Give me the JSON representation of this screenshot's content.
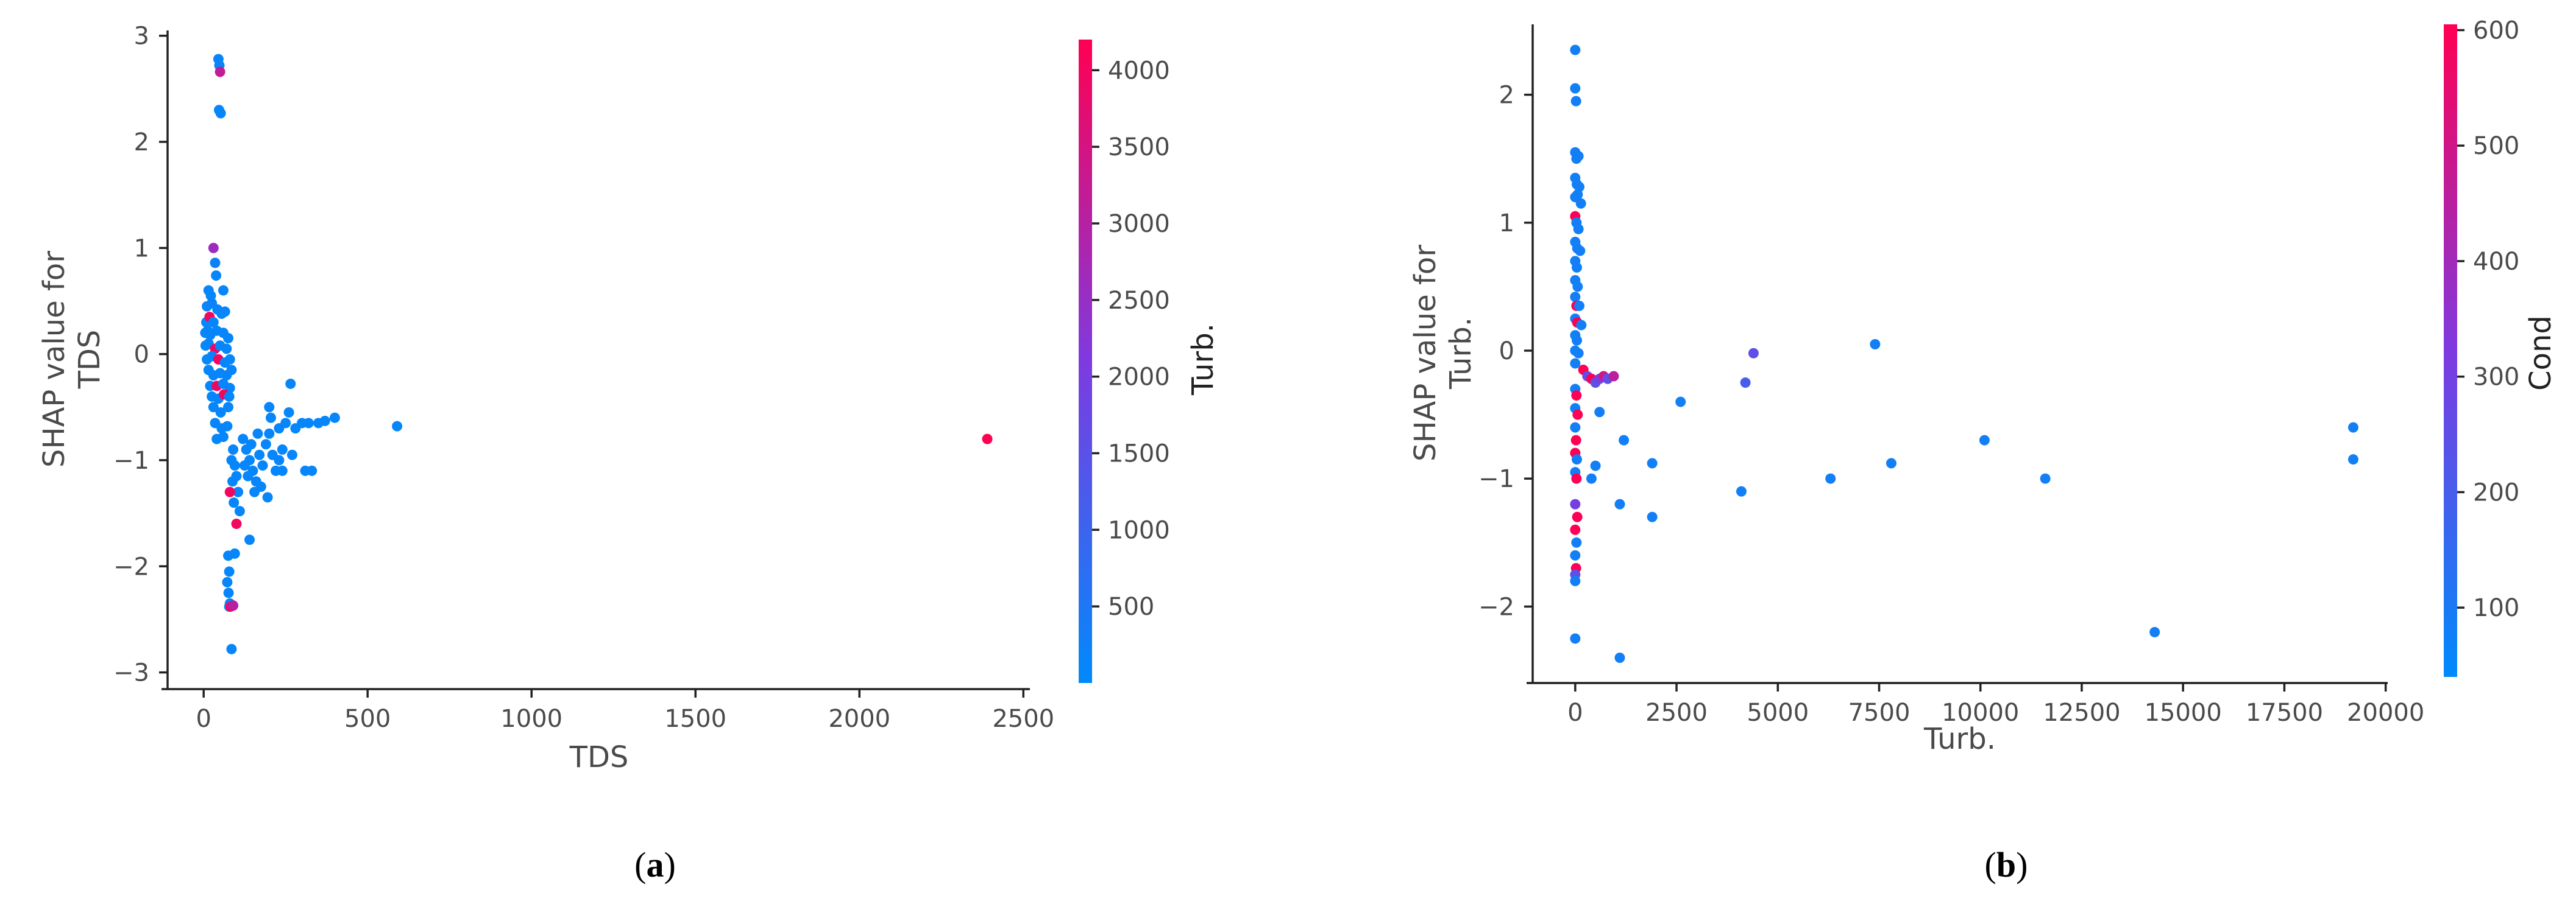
{
  "colors": {
    "low": "#1e88e5",
    "high": "#ff0052",
    "axis": "#222222",
    "text": "#4a4a4a"
  },
  "chart_data": [
    {
      "type": "scatter",
      "panel_label": "a",
      "xlabel": "TDS",
      "ylabel": "SHAP value for\nTDS",
      "colorbar_label": "Turb.",
      "xlim": [
        -110,
        2520
      ],
      "ylim": [
        -3.1,
        3.05
      ],
      "xticks": [
        0,
        500,
        1000,
        1500,
        2000,
        2500
      ],
      "yticks": [
        -3,
        -2,
        -1,
        0,
        1,
        2,
        3
      ],
      "colorbar_range": [
        0,
        4200
      ],
      "colorbar_ticks": [
        500,
        1000,
        1500,
        2000,
        2500,
        3000,
        3500,
        4000
      ],
      "points": [
        {
          "x": 45,
          "y": 2.78,
          "c": 100
        },
        {
          "x": 48,
          "y": 2.72,
          "c": 150
        },
        {
          "x": 50,
          "y": 2.66,
          "c": 3200
        },
        {
          "x": 47,
          "y": 2.3,
          "c": 100
        },
        {
          "x": 52,
          "y": 2.27,
          "c": 120
        },
        {
          "x": 30,
          "y": 1.0,
          "c": 2600
        },
        {
          "x": 35,
          "y": 0.86,
          "c": 200
        },
        {
          "x": 38,
          "y": 0.74,
          "c": 100
        },
        {
          "x": 15,
          "y": 0.6,
          "c": 100
        },
        {
          "x": 22,
          "y": 0.55,
          "c": 100
        },
        {
          "x": 60,
          "y": 0.6,
          "c": 100
        },
        {
          "x": 10,
          "y": 0.45,
          "c": 100
        },
        {
          "x": 25,
          "y": 0.48,
          "c": 150
        },
        {
          "x": 42,
          "y": 0.42,
          "c": 100
        },
        {
          "x": 8,
          "y": 0.3,
          "c": 100
        },
        {
          "x": 18,
          "y": 0.35,
          "c": 4000
        },
        {
          "x": 30,
          "y": 0.3,
          "c": 100
        },
        {
          "x": 55,
          "y": 0.38,
          "c": 100
        },
        {
          "x": 65,
          "y": 0.4,
          "c": 100
        },
        {
          "x": 5,
          "y": 0.2,
          "c": 100
        },
        {
          "x": 12,
          "y": 0.22,
          "c": 100
        },
        {
          "x": 20,
          "y": 0.18,
          "c": 100
        },
        {
          "x": 40,
          "y": 0.22,
          "c": 100
        },
        {
          "x": 60,
          "y": 0.2,
          "c": 100
        },
        {
          "x": 75,
          "y": 0.15,
          "c": 100
        },
        {
          "x": 6,
          "y": 0.08,
          "c": 100
        },
        {
          "x": 15,
          "y": 0.1,
          "c": 100
        },
        {
          "x": 35,
          "y": 0.05,
          "c": 4000
        },
        {
          "x": 50,
          "y": 0.08,
          "c": 100
        },
        {
          "x": 70,
          "y": 0.05,
          "c": 100
        },
        {
          "x": 10,
          "y": -0.05,
          "c": 100
        },
        {
          "x": 25,
          "y": -0.02,
          "c": 100
        },
        {
          "x": 45,
          "y": -0.05,
          "c": 4000
        },
        {
          "x": 65,
          "y": -0.08,
          "c": 100
        },
        {
          "x": 80,
          "y": -0.05,
          "c": 100
        },
        {
          "x": 15,
          "y": -0.15,
          "c": 100
        },
        {
          "x": 30,
          "y": -0.2,
          "c": 100
        },
        {
          "x": 50,
          "y": -0.18,
          "c": 100
        },
        {
          "x": 70,
          "y": -0.2,
          "c": 100
        },
        {
          "x": 85,
          "y": -0.15,
          "c": 100
        },
        {
          "x": 20,
          "y": -0.3,
          "c": 100
        },
        {
          "x": 40,
          "y": -0.3,
          "c": 4000
        },
        {
          "x": 60,
          "y": -0.28,
          "c": 100
        },
        {
          "x": 80,
          "y": -0.32,
          "c": 100
        },
        {
          "x": 25,
          "y": -0.4,
          "c": 100
        },
        {
          "x": 45,
          "y": -0.42,
          "c": 100
        },
        {
          "x": 62,
          "y": -0.38,
          "c": 4000
        },
        {
          "x": 78,
          "y": -0.4,
          "c": 100
        },
        {
          "x": 30,
          "y": -0.5,
          "c": 100
        },
        {
          "x": 52,
          "y": -0.55,
          "c": 100
        },
        {
          "x": 75,
          "y": -0.5,
          "c": 100
        },
        {
          "x": 35,
          "y": -0.65,
          "c": 100
        },
        {
          "x": 55,
          "y": -0.7,
          "c": 100
        },
        {
          "x": 72,
          "y": -0.68,
          "c": 100
        },
        {
          "x": 40,
          "y": -0.8,
          "c": 100
        },
        {
          "x": 60,
          "y": -0.78,
          "c": 100
        },
        {
          "x": 90,
          "y": -0.9,
          "c": 100
        },
        {
          "x": 85,
          "y": -1.0,
          "c": 100
        },
        {
          "x": 95,
          "y": -1.05,
          "c": 100
        },
        {
          "x": 100,
          "y": -1.15,
          "c": 100
        },
        {
          "x": 88,
          "y": -1.2,
          "c": 100
        },
        {
          "x": 105,
          "y": -1.3,
          "c": 100
        },
        {
          "x": 92,
          "y": -1.4,
          "c": 100
        },
        {
          "x": 110,
          "y": -1.48,
          "c": 100
        },
        {
          "x": 120,
          "y": -0.8,
          "c": 100
        },
        {
          "x": 130,
          "y": -0.9,
          "c": 100
        },
        {
          "x": 140,
          "y": -1.0,
          "c": 100
        },
        {
          "x": 150,
          "y": -1.1,
          "c": 100
        },
        {
          "x": 160,
          "y": -1.2,
          "c": 100
        },
        {
          "x": 125,
          "y": -1.05,
          "c": 100
        },
        {
          "x": 135,
          "y": -1.15,
          "c": 100
        },
        {
          "x": 170,
          "y": -0.95,
          "c": 100
        },
        {
          "x": 180,
          "y": -1.05,
          "c": 100
        },
        {
          "x": 190,
          "y": -0.85,
          "c": 100
        },
        {
          "x": 200,
          "y": -0.75,
          "c": 100
        },
        {
          "x": 210,
          "y": -0.95,
          "c": 100
        },
        {
          "x": 220,
          "y": -1.1,
          "c": 100
        },
        {
          "x": 230,
          "y": -0.7,
          "c": 100
        },
        {
          "x": 240,
          "y": -0.9,
          "c": 100
        },
        {
          "x": 175,
          "y": -1.25,
          "c": 100
        },
        {
          "x": 195,
          "y": -1.35,
          "c": 100
        },
        {
          "x": 155,
          "y": -1.3,
          "c": 100
        },
        {
          "x": 165,
          "y": -0.75,
          "c": 100
        },
        {
          "x": 145,
          "y": -0.85,
          "c": 100
        },
        {
          "x": 200,
          "y": -0.5,
          "c": 100
        },
        {
          "x": 205,
          "y": -0.6,
          "c": 100
        },
        {
          "x": 250,
          "y": -0.65,
          "c": 100
        },
        {
          "x": 260,
          "y": -0.55,
          "c": 100
        },
        {
          "x": 265,
          "y": -0.28,
          "c": 100
        },
        {
          "x": 270,
          "y": -0.95,
          "c": 100
        },
        {
          "x": 280,
          "y": -0.7,
          "c": 100
        },
        {
          "x": 300,
          "y": -0.65,
          "c": 100
        },
        {
          "x": 310,
          "y": -1.1,
          "c": 100
        },
        {
          "x": 320,
          "y": -0.65,
          "c": 100
        },
        {
          "x": 330,
          "y": -1.1,
          "c": 100
        },
        {
          "x": 350,
          "y": -0.65,
          "c": 100
        },
        {
          "x": 370,
          "y": -0.63,
          "c": 100
        },
        {
          "x": 400,
          "y": -0.6,
          "c": 100
        },
        {
          "x": 240,
          "y": -1.1,
          "c": 100
        },
        {
          "x": 230,
          "y": -1.0,
          "c": 100
        },
        {
          "x": 590,
          "y": -0.68,
          "c": 100
        },
        {
          "x": 2390,
          "y": -0.8,
          "c": 4200
        },
        {
          "x": 80,
          "y": -1.3,
          "c": 4000
        },
        {
          "x": 100,
          "y": -1.6,
          "c": 4000
        },
        {
          "x": 140,
          "y": -1.75,
          "c": 100
        },
        {
          "x": 95,
          "y": -1.88,
          "c": 100
        },
        {
          "x": 75,
          "y": -1.9,
          "c": 100
        },
        {
          "x": 78,
          "y": -2.05,
          "c": 100
        },
        {
          "x": 72,
          "y": -2.15,
          "c": 100
        },
        {
          "x": 76,
          "y": -2.25,
          "c": 100
        },
        {
          "x": 80,
          "y": -2.35,
          "c": 100
        },
        {
          "x": 78,
          "y": -2.38,
          "c": 100
        },
        {
          "x": 82,
          "y": -2.38,
          "c": 4000
        },
        {
          "x": 90,
          "y": -2.37,
          "c": 3000
        },
        {
          "x": 85,
          "y": -2.78,
          "c": 100
        }
      ]
    },
    {
      "type": "scatter",
      "panel_label": "b",
      "xlabel": "Turb.",
      "ylabel": "SHAP value for\nTurb.",
      "colorbar_label": "Cond",
      "xlim": [
        -1050,
        20050
      ],
      "ylim": [
        -2.55,
        2.55
      ],
      "xticks": [
        0,
        2500,
        5000,
        7500,
        10000,
        12500,
        15000,
        17500,
        20000
      ],
      "yticks": [
        -2,
        -1,
        0,
        1,
        2
      ],
      "colorbar_range": [
        40,
        605
      ],
      "colorbar_ticks": [
        100,
        200,
        300,
        400,
        500,
        600
      ],
      "points": [
        {
          "x": 0,
          "y": 2.35,
          "c": 80
        },
        {
          "x": 0,
          "y": 2.05,
          "c": 80
        },
        {
          "x": 20,
          "y": 1.95,
          "c": 80
        },
        {
          "x": 0,
          "y": 1.55,
          "c": 80
        },
        {
          "x": 30,
          "y": 1.5,
          "c": 80
        },
        {
          "x": 80,
          "y": 1.52,
          "c": 80
        },
        {
          "x": 0,
          "y": 1.35,
          "c": 80
        },
        {
          "x": 40,
          "y": 1.3,
          "c": 80
        },
        {
          "x": 100,
          "y": 1.28,
          "c": 80
        },
        {
          "x": 0,
          "y": 1.2,
          "c": 80
        },
        {
          "x": 60,
          "y": 1.22,
          "c": 80
        },
        {
          "x": 140,
          "y": 1.15,
          "c": 80
        },
        {
          "x": 0,
          "y": 1.05,
          "c": 600
        },
        {
          "x": 30,
          "y": 1.0,
          "c": 80
        },
        {
          "x": 80,
          "y": 0.95,
          "c": 80
        },
        {
          "x": 0,
          "y": 0.85,
          "c": 80
        },
        {
          "x": 50,
          "y": 0.8,
          "c": 80
        },
        {
          "x": 120,
          "y": 0.78,
          "c": 80
        },
        {
          "x": 0,
          "y": 0.7,
          "c": 80
        },
        {
          "x": 40,
          "y": 0.65,
          "c": 80
        },
        {
          "x": 0,
          "y": 0.55,
          "c": 80
        },
        {
          "x": 60,
          "y": 0.5,
          "c": 80
        },
        {
          "x": 0,
          "y": 0.42,
          "c": 80
        },
        {
          "x": 30,
          "y": 0.35,
          "c": 600
        },
        {
          "x": 100,
          "y": 0.35,
          "c": 80
        },
        {
          "x": 0,
          "y": 0.25,
          "c": 80
        },
        {
          "x": 50,
          "y": 0.22,
          "c": 600
        },
        {
          "x": 150,
          "y": 0.2,
          "c": 80
        },
        {
          "x": 0,
          "y": 0.12,
          "c": 80
        },
        {
          "x": 40,
          "y": 0.08,
          "c": 80
        },
        {
          "x": 0,
          "y": 0.0,
          "c": 80
        },
        {
          "x": 80,
          "y": -0.02,
          "c": 80
        },
        {
          "x": 0,
          "y": -0.1,
          "c": 80
        },
        {
          "x": 200,
          "y": -0.15,
          "c": 600
        },
        {
          "x": 300,
          "y": -0.2,
          "c": 250
        },
        {
          "x": 400,
          "y": -0.22,
          "c": 600
        },
        {
          "x": 500,
          "y": -0.25,
          "c": 250
        },
        {
          "x": 600,
          "y": -0.22,
          "c": 300
        },
        {
          "x": 700,
          "y": -0.2,
          "c": 500
        },
        {
          "x": 800,
          "y": -0.22,
          "c": 250
        },
        {
          "x": 950,
          "y": -0.2,
          "c": 450
        },
        {
          "x": 0,
          "y": -0.3,
          "c": 80
        },
        {
          "x": 30,
          "y": -0.35,
          "c": 600
        },
        {
          "x": 0,
          "y": -0.45,
          "c": 80
        },
        {
          "x": 60,
          "y": -0.5,
          "c": 600
        },
        {
          "x": 0,
          "y": -0.6,
          "c": 80
        },
        {
          "x": 20,
          "y": -0.7,
          "c": 600
        },
        {
          "x": 0,
          "y": -0.8,
          "c": 600
        },
        {
          "x": 40,
          "y": -0.85,
          "c": 80
        },
        {
          "x": 0,
          "y": -0.95,
          "c": 80
        },
        {
          "x": 30,
          "y": -1.0,
          "c": 600
        },
        {
          "x": 0,
          "y": -1.2,
          "c": 300
        },
        {
          "x": 50,
          "y": -1.3,
          "c": 600
        },
        {
          "x": 0,
          "y": -1.4,
          "c": 600
        },
        {
          "x": 30,
          "y": -1.5,
          "c": 80
        },
        {
          "x": 0,
          "y": -1.6,
          "c": 80
        },
        {
          "x": 20,
          "y": -1.7,
          "c": 600
        },
        {
          "x": 0,
          "y": -1.75,
          "c": 250
        },
        {
          "x": 0,
          "y": -1.8,
          "c": 80
        },
        {
          "x": 0,
          "y": -2.25,
          "c": 80
        },
        {
          "x": 600,
          "y": -0.48,
          "c": 80
        },
        {
          "x": 1200,
          "y": -0.7,
          "c": 80
        },
        {
          "x": 2600,
          "y": -0.4,
          "c": 80
        },
        {
          "x": 500,
          "y": -0.9,
          "c": 80
        },
        {
          "x": 400,
          "y": -1.0,
          "c": 80
        },
        {
          "x": 1900,
          "y": -0.88,
          "c": 80
        },
        {
          "x": 1100,
          "y": -1.2,
          "c": 80
        },
        {
          "x": 1900,
          "y": -1.3,
          "c": 80
        },
        {
          "x": 1100,
          "y": -2.4,
          "c": 80
        },
        {
          "x": 4100,
          "y": -1.1,
          "c": 80
        },
        {
          "x": 4200,
          "y": -0.25,
          "c": 200
        },
        {
          "x": 4400,
          "y": -0.02,
          "c": 250
        },
        {
          "x": 6300,
          "y": -1.0,
          "c": 80
        },
        {
          "x": 7400,
          "y": 0.05,
          "c": 80
        },
        {
          "x": 7800,
          "y": -0.88,
          "c": 80
        },
        {
          "x": 10100,
          "y": -0.7,
          "c": 80
        },
        {
          "x": 11600,
          "y": -1.0,
          "c": 80
        },
        {
          "x": 14300,
          "y": -2.2,
          "c": 80
        },
        {
          "x": 19200,
          "y": -0.6,
          "c": 80
        },
        {
          "x": 19200,
          "y": -0.85,
          "c": 80
        }
      ]
    }
  ]
}
